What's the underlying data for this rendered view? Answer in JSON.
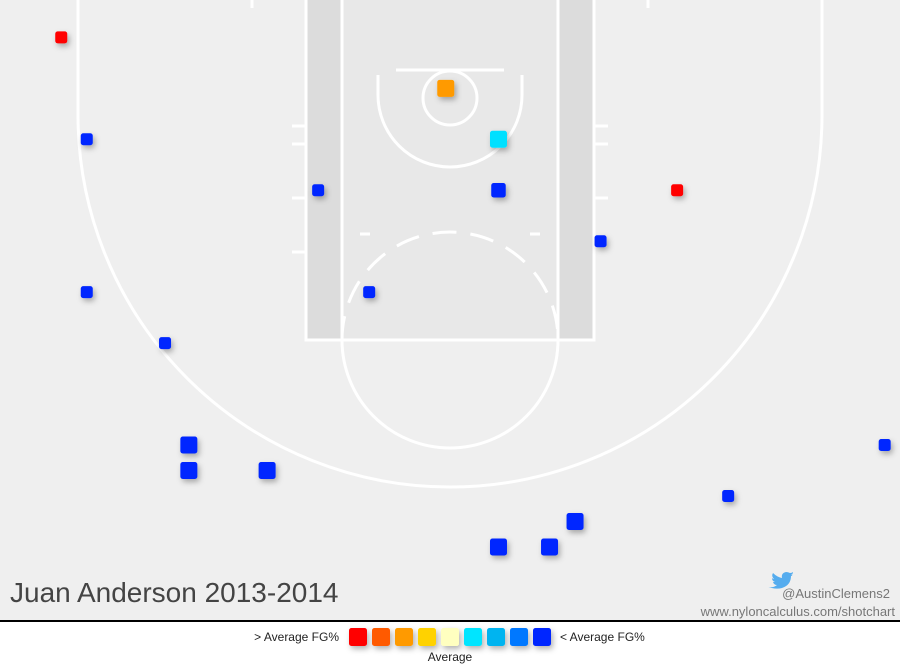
{
  "chart_data": {
    "type": "shotchart",
    "title": "Juan Anderson 2013-2014",
    "credit": "@AustinClemens2",
    "url": "www.nyloncalculus.com/shotchart",
    "xlim": [
      -26.2,
      26.7
    ],
    "ylim": [
      -5.2,
      31.3
    ],
    "shots": {
      "x": [
        -22.6,
        -21.1,
        0,
        3.1,
        -7.5,
        3.1,
        13.6,
        9.1,
        -21.1,
        -4.5,
        -16.5,
        -15.1,
        -15.1,
        -10.5,
        25.8,
        16.6,
        7.6,
        3.1,
        6.1
      ],
      "y": [
        -3.0,
        3.0,
        0,
        3.0,
        6.0,
        6.0,
        6.0,
        9.0,
        12.0,
        12.0,
        15.0,
        21.0,
        22.5,
        22.5,
        21.0,
        24.0,
        25.5,
        27.0,
        27.0
      ],
      "sizes": [
        1,
        1,
        2,
        2,
        1,
        1.5,
        1,
        1,
        1,
        1,
        1,
        2,
        2,
        2,
        1,
        1,
        2,
        2,
        2
      ],
      "colors": [
        "#ff0000",
        "#0028ff",
        "#ff9a00",
        "#00e0ff",
        "#0028ff",
        "#0028ff",
        "#ff0000",
        "#0028ff",
        "#0028ff",
        "#0028ff",
        "#0028ff",
        "#0028ff",
        "#0028ff",
        "#0028ff",
        "#0028ff",
        "#0028ff",
        "#0028ff",
        "#0028ff",
        "#0028ff"
      ]
    },
    "legend": {
      "high_label": "> Average FG%",
      "low_label": "< Average FG%",
      "mid_label": "Average",
      "colors": [
        "#ff0000",
        "#ff5a00",
        "#ff9a00",
        "#ffd200",
        "#ffffc0",
        "#00e5ff",
        "#00b4f0",
        "#0078ff",
        "#0028ff"
      ]
    }
  }
}
